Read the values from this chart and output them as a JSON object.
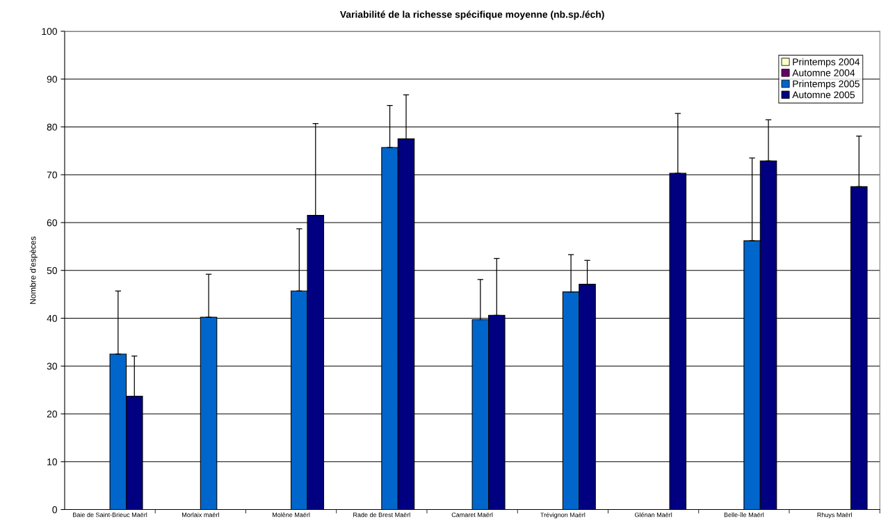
{
  "chart_data": {
    "type": "bar",
    "title": "Variabilité de la richesse spécifique moyenne (nb.sp./éch)",
    "ylabel": "Nombre d'espèces",
    "categories": [
      "Baie de Saint-Brieuc Maërl",
      "Morlaix maërl",
      "Molène Maërl",
      "Rade de Brest Maërl",
      "Camaret Maërl",
      "Trévignon Maërl",
      "Glénan Maërl",
      "Belle-île Maërl",
      "Rhuys Maërl"
    ],
    "series": [
      {
        "name": "Printemps 2004",
        "color": "#ffffcc",
        "values": [
          null,
          null,
          null,
          null,
          null,
          null,
          null,
          null,
          null
        ]
      },
      {
        "name": "Automne 2004",
        "color": "#660066",
        "values": [
          null,
          null,
          null,
          null,
          null,
          null,
          null,
          null,
          null
        ]
      },
      {
        "name": "Printemps 2005",
        "color": "#0066cc",
        "values": [
          32.5,
          40.2,
          45.7,
          75.7,
          39.7,
          45.5,
          null,
          56.2,
          null
        ],
        "errors": [
          [
            32.5,
            45.7
          ],
          [
            40.2,
            49.2
          ],
          [
            45.7,
            58.7
          ],
          [
            75.7,
            84.5
          ],
          [
            39.7,
            48.1
          ],
          [
            45.5,
            53.3
          ],
          null,
          [
            56.2,
            73.5
          ],
          null
        ]
      },
      {
        "name": "Automne 2005",
        "color": "#000080",
        "values": [
          23.7,
          null,
          61.5,
          77.5,
          40.6,
          47.1,
          70.3,
          72.9,
          67.5
        ],
        "errors": [
          [
            23.7,
            32.1
          ],
          null,
          [
            61.5,
            80.7
          ],
          [
            77.5,
            86.7
          ],
          [
            40.6,
            52.5
          ],
          [
            47.1,
            52.1
          ],
          [
            70.3,
            82.8
          ],
          [
            72.9,
            81.5
          ],
          [
            67.5,
            78.1
          ]
        ]
      }
    ],
    "ylim": [
      0,
      100
    ],
    "yticks": [
      0,
      10,
      20,
      30,
      40,
      50,
      60,
      70,
      80,
      90,
      100
    ],
    "grid": "y",
    "legend": "top right"
  }
}
